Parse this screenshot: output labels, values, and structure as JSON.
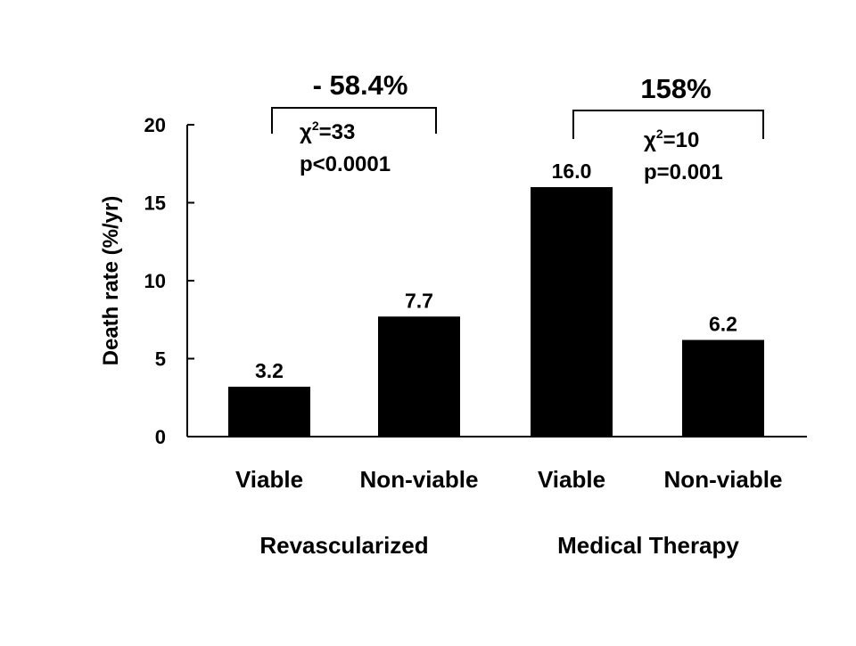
{
  "chart_data": {
    "type": "bar",
    "ylabel": "Death rate (%/yr)",
    "ylim": [
      0,
      20
    ],
    "yticks": [
      0,
      5,
      10,
      15,
      20
    ],
    "categories": [
      "Viable",
      "Non-viable",
      "Viable",
      "Non-viable"
    ],
    "values": [
      3.2,
      7.7,
      16.0,
      6.2
    ],
    "value_labels": [
      "3.2",
      "7.7",
      "16.0",
      "6.2"
    ],
    "groups": [
      {
        "label": "Revascularized",
        "categories": [
          0,
          1
        ]
      },
      {
        "label": "Medical Therapy",
        "categories": [
          2,
          3
        ]
      }
    ],
    "comparisons": [
      {
        "group": 0,
        "pct": "- 58.4%",
        "chi": "χ",
        "chi_sup": "2",
        "chi_val": "=33",
        "p": "p<0.0001"
      },
      {
        "group": 1,
        "pct": "158%",
        "chi": "χ",
        "chi_sup": "2",
        "chi_val": "=10",
        "p": "p=0.001"
      }
    ],
    "bar_color": "#000000"
  }
}
